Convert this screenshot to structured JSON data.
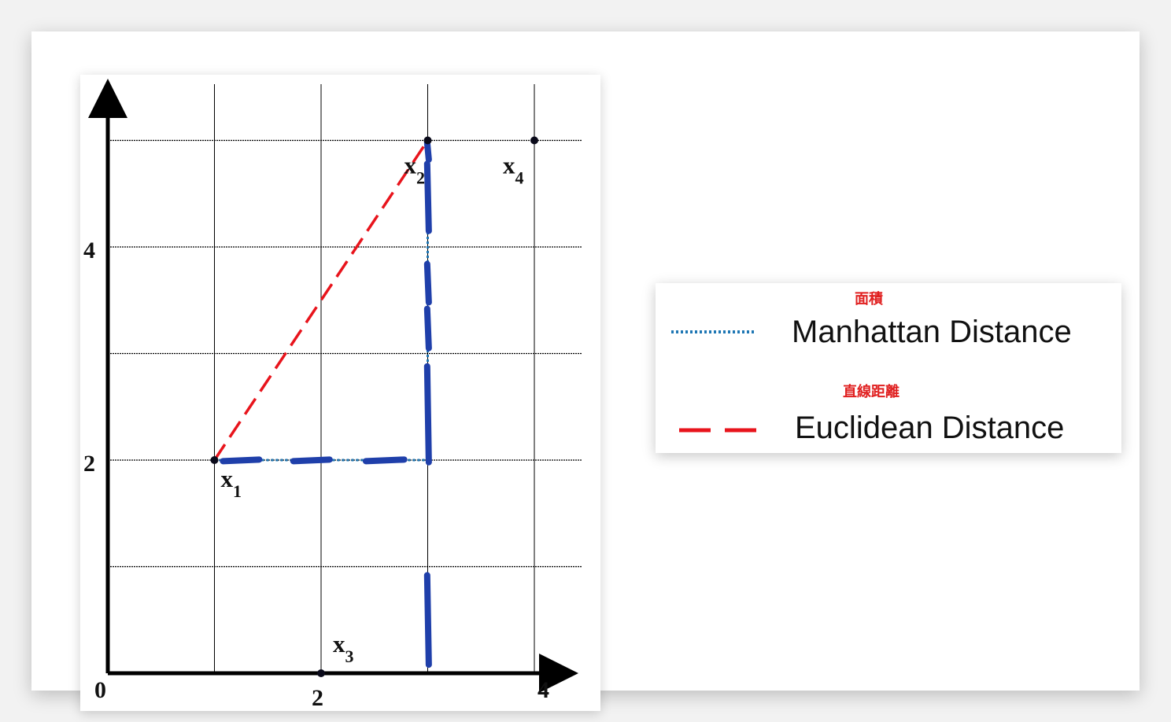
{
  "chart_data": {
    "type": "scatter",
    "title": "",
    "xlabel": "",
    "ylabel": "",
    "xlim": [
      0,
      4.5
    ],
    "ylim": [
      0,
      5
    ],
    "x_ticks": [
      {
        "value": 0,
        "label": "0"
      },
      {
        "value": 2,
        "label": "2"
      },
      {
        "value": 4,
        "label": "4"
      }
    ],
    "y_ticks": [
      {
        "value": 2,
        "label": "2"
      },
      {
        "value": 4,
        "label": "4"
      }
    ],
    "grid": true,
    "points": [
      {
        "name": "x",
        "sub": "1",
        "x": 1,
        "y": 2
      },
      {
        "name": "x",
        "sub": "2",
        "x": 3,
        "y": 5
      },
      {
        "name": "x",
        "sub": "3",
        "x": 2,
        "y": 0
      },
      {
        "name": "x",
        "sub": "4",
        "x": 4,
        "y": 5
      }
    ],
    "series": [
      {
        "name": "Manhattan Distance",
        "style": "dotted",
        "color": "#1f77b4",
        "path": [
          [
            1,
            2
          ],
          [
            3,
            2
          ],
          [
            3,
            5
          ]
        ]
      },
      {
        "name": "Euclidean Distance",
        "style": "dashed",
        "color": "#e8141c",
        "path": [
          [
            1,
            2
          ],
          [
            3,
            5
          ]
        ]
      }
    ],
    "annotation": {
      "style": "marker",
      "color": "#1f3faa",
      "path": [
        [
          1,
          2
        ],
        [
          3,
          2
        ],
        [
          3,
          5
        ]
      ]
    }
  },
  "legend": {
    "items": [
      {
        "label": "Manhattan Distance",
        "note": "面積"
      },
      {
        "label": "Euclidean Distance",
        "note": "直線距離"
      }
    ],
    "note_color": "#e02020"
  }
}
